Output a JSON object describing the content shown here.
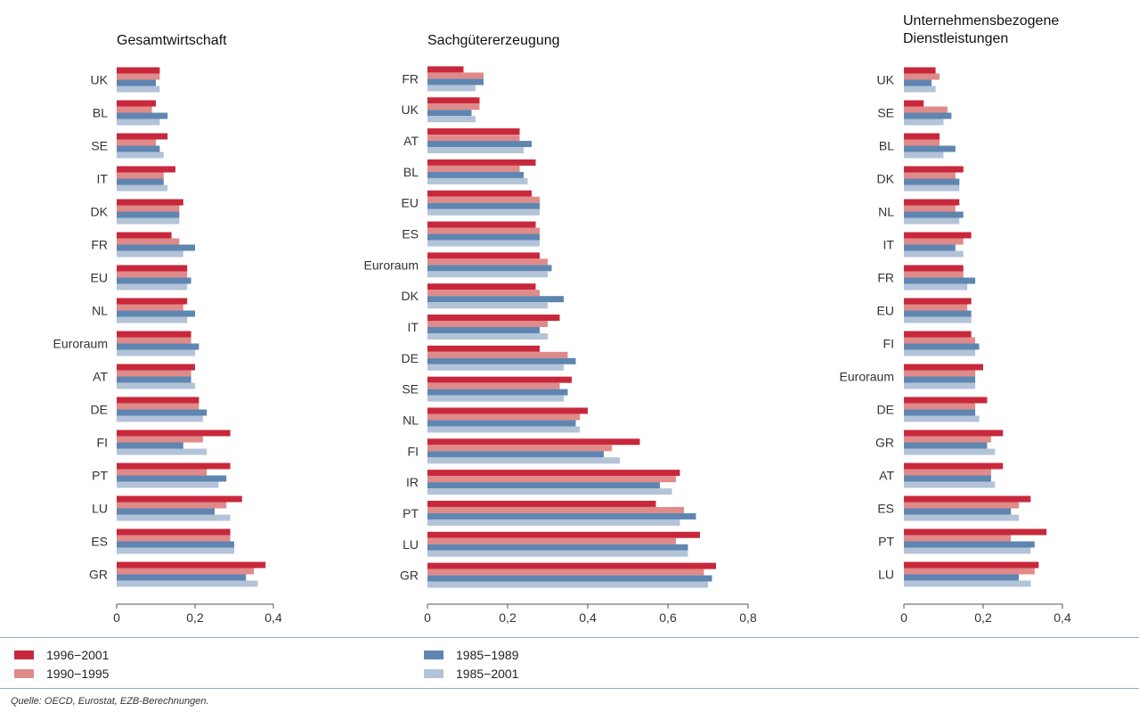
{
  "colors": {
    "s1": "#c8283c",
    "s2": "#e08a8a",
    "s3": "#5f86b1",
    "s4": "#b3c3d8"
  },
  "legend": [
    {
      "label": "1996−2001",
      "color": "#c8283c"
    },
    {
      "label": "1990−1995",
      "color": "#e08a8a"
    },
    {
      "label": "1985−1989",
      "color": "#5f86b1"
    },
    {
      "label": "1985−2001",
      "color": "#b3c3d8"
    }
  ],
  "source": "Quelle: OECD, Eurostat, EZB-Berechnungen.",
  "chart_data": [
    {
      "type": "bar",
      "orientation": "horizontal",
      "title": "Gesamtwirtschaft",
      "xlim": [
        0,
        0.4
      ],
      "xticks": [
        "0",
        "0,2",
        "0,4"
      ],
      "categories": [
        "UK",
        "BL",
        "SE",
        "IT",
        "DK",
        "FR",
        "EU",
        "NL",
        "Euroraum",
        "AT",
        "DE",
        "FI",
        "PT",
        "LU",
        "ES",
        "GR"
      ],
      "series": [
        {
          "name": "1996−2001",
          "values": [
            0.11,
            0.1,
            0.13,
            0.15,
            0.17,
            0.14,
            0.18,
            0.18,
            0.19,
            0.2,
            0.21,
            0.29,
            0.29,
            0.32,
            0.29,
            0.38
          ]
        },
        {
          "name": "1990−1995",
          "values": [
            0.11,
            0.09,
            0.1,
            0.12,
            0.16,
            0.16,
            0.18,
            0.17,
            0.19,
            0.19,
            0.21,
            0.22,
            0.23,
            0.28,
            0.29,
            0.35
          ]
        },
        {
          "name": "1985−1989",
          "values": [
            0.1,
            0.13,
            0.11,
            0.12,
            0.16,
            0.2,
            0.19,
            0.2,
            0.21,
            0.19,
            0.23,
            0.17,
            0.28,
            0.25,
            0.3,
            0.33
          ]
        },
        {
          "name": "1985−2001",
          "values": [
            0.11,
            0.11,
            0.12,
            0.13,
            0.16,
            0.17,
            0.18,
            0.18,
            0.2,
            0.2,
            0.22,
            0.23,
            0.26,
            0.29,
            0.3,
            0.36
          ]
        }
      ]
    },
    {
      "type": "bar",
      "orientation": "horizontal",
      "title": "Sachgütererzeugung",
      "xlim": [
        0,
        0.8
      ],
      "xticks": [
        "0",
        "0,2",
        "0,4",
        "0,6",
        "0,8"
      ],
      "categories": [
        "FR",
        "UK",
        "AT",
        "BL",
        "EU",
        "ES",
        "Euroraum",
        "DK",
        "IT",
        "DE",
        "SE",
        "NL",
        "FI",
        "IR",
        "PT",
        "LU",
        "GR"
      ],
      "series": [
        {
          "name": "1996−2001",
          "values": [
            0.09,
            0.13,
            0.23,
            0.27,
            0.26,
            0.27,
            0.28,
            0.27,
            0.33,
            0.28,
            0.36,
            0.4,
            0.53,
            0.63,
            0.57,
            0.68,
            0.72
          ]
        },
        {
          "name": "1990−1995",
          "values": [
            0.14,
            0.13,
            0.23,
            0.23,
            0.28,
            0.28,
            0.3,
            0.28,
            0.3,
            0.35,
            0.33,
            0.38,
            0.46,
            0.62,
            0.64,
            0.62,
            0.69
          ]
        },
        {
          "name": "1985−1989",
          "values": [
            0.14,
            0.11,
            0.26,
            0.24,
            0.28,
            0.28,
            0.31,
            0.34,
            0.28,
            0.37,
            0.35,
            0.37,
            0.44,
            0.58,
            0.67,
            0.65,
            0.71
          ]
        },
        {
          "name": "1985−2001",
          "values": [
            0.12,
            0.12,
            0.24,
            0.25,
            0.28,
            0.28,
            0.3,
            0.3,
            0.3,
            0.34,
            0.34,
            0.38,
            0.48,
            0.61,
            0.63,
            0.65,
            0.7
          ]
        }
      ]
    },
    {
      "type": "bar",
      "orientation": "horizontal",
      "title": "Unternehmensbezogene Dienstleistungen",
      "title_lines": [
        "Unternehmensbezogene",
        "Dienstleistungen"
      ],
      "xlim": [
        0,
        0.4
      ],
      "xticks": [
        "0",
        "0,2",
        "0,4"
      ],
      "categories": [
        "UK",
        "SE",
        "BL",
        "DK",
        "NL",
        "IT",
        "FR",
        "EU",
        "FI",
        "Euroraum",
        "DE",
        "GR",
        "AT",
        "ES",
        "PT",
        "LU"
      ],
      "series": [
        {
          "name": "1996−2001",
          "values": [
            0.08,
            0.05,
            0.09,
            0.15,
            0.14,
            0.17,
            0.15,
            0.17,
            0.17,
            0.2,
            0.21,
            0.25,
            0.25,
            0.32,
            0.36,
            0.34
          ]
        },
        {
          "name": "1990−1995",
          "values": [
            0.09,
            0.11,
            0.09,
            0.13,
            0.13,
            0.15,
            0.15,
            0.16,
            0.18,
            0.18,
            0.18,
            0.22,
            0.22,
            0.29,
            0.27,
            0.33
          ]
        },
        {
          "name": "1985−1989",
          "values": [
            0.07,
            0.12,
            0.13,
            0.14,
            0.15,
            0.13,
            0.18,
            0.17,
            0.19,
            0.18,
            0.18,
            0.21,
            0.22,
            0.27,
            0.33,
            0.29
          ]
        },
        {
          "name": "1985−2001",
          "values": [
            0.08,
            0.1,
            0.1,
            0.14,
            0.14,
            0.15,
            0.16,
            0.17,
            0.18,
            0.18,
            0.19,
            0.23,
            0.23,
            0.29,
            0.32,
            0.32
          ]
        }
      ]
    }
  ]
}
